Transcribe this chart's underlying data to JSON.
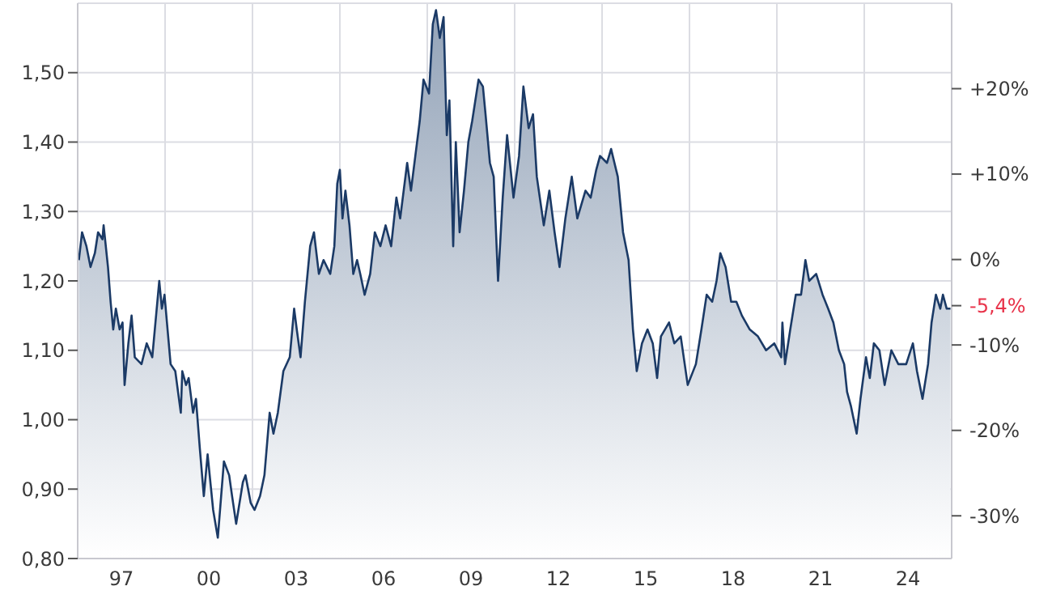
{
  "chart_data": {
    "type": "area",
    "color": "#1b3a66",
    "x": [
      1995.54,
      1995.65,
      1995.8,
      1995.94,
      1996.09,
      1996.2,
      1996.35,
      1996.39,
      1996.54,
      1996.63,
      1996.72,
      1996.81,
      1996.94,
      1997.04,
      1997.11,
      1997.24,
      1997.35,
      1997.46,
      1997.69,
      1997.87,
      1998.06,
      1998.3,
      1998.39,
      1998.48,
      1998.69,
      1998.85,
      1999.04,
      1999.09,
      1999.22,
      1999.31,
      1999.46,
      1999.56,
      1999.69,
      1999.83,
      1999.96,
      2000.15,
      2000.31,
      2000.52,
      2000.7,
      2000.8,
      2000.94,
      2001.17,
      2001.26,
      2001.44,
      2001.57,
      2001.76,
      2001.91,
      2002.09,
      2002.22,
      2002.37,
      2002.56,
      2002.78,
      2002.93,
      2003.02,
      2003.15,
      2003.3,
      2003.48,
      2003.61,
      2003.78,
      2003.94,
      2004.17,
      2004.31,
      2004.41,
      2004.5,
      2004.59,
      2004.69,
      2004.83,
      2004.96,
      2005.09,
      2005.2,
      2005.35,
      2005.54,
      2005.7,
      2005.89,
      2006.07,
      2006.26,
      2006.44,
      2006.57,
      2006.81,
      2006.94,
      2007.09,
      2007.24,
      2007.37,
      2007.56,
      2007.69,
      2007.8,
      2007.93,
      2008.06,
      2008.17,
      2008.26,
      2008.39,
      2008.48,
      2008.61,
      2008.76,
      2008.91,
      2009.04,
      2009.26,
      2009.41,
      2009.5,
      2009.65,
      2009.78,
      2009.93,
      2010.09,
      2010.24,
      2010.46,
      2010.65,
      2010.8,
      2010.98,
      2011.13,
      2011.26,
      2011.5,
      2011.69,
      2011.87,
      2012.04,
      2012.24,
      2012.46,
      2012.65,
      2012.93,
      2013.11,
      2013.3,
      2013.43,
      2013.67,
      2013.81,
      2014.04,
      2014.22,
      2014.41,
      2014.56,
      2014.69,
      2014.87,
      2015.06,
      2015.24,
      2015.39,
      2015.52,
      2015.8,
      2015.98,
      2016.2,
      2016.44,
      2016.72,
      2016.91,
      2017.09,
      2017.28,
      2017.43,
      2017.56,
      2017.74,
      2017.93,
      2018.11,
      2018.3,
      2018.57,
      2018.85,
      2019.13,
      2019.41,
      2019.65,
      2019.69,
      2019.78,
      2019.96,
      2020.15,
      2020.33,
      2020.48,
      2020.61,
      2020.85,
      2021.07,
      2021.26,
      2021.44,
      2021.63,
      2021.81,
      2021.91,
      2022.04,
      2022.24,
      2022.37,
      2022.56,
      2022.69,
      2022.83,
      2023.02,
      2023.2,
      2023.43,
      2023.67,
      2023.94,
      2024.17,
      2024.31,
      2024.5,
      2024.69,
      2024.81,
      2024.96,
      2025.11,
      2025.2,
      2025.33,
      2025.46
    ],
    "values": [
      1.23,
      1.27,
      1.25,
      1.22,
      1.24,
      1.27,
      1.26,
      1.28,
      1.22,
      1.17,
      1.13,
      1.16,
      1.13,
      1.14,
      1.05,
      1.11,
      1.15,
      1.09,
      1.08,
      1.11,
      1.09,
      1.2,
      1.16,
      1.18,
      1.08,
      1.07,
      1.01,
      1.07,
      1.05,
      1.06,
      1.01,
      1.03,
      0.96,
      0.89,
      0.95,
      0.87,
      0.83,
      0.94,
      0.92,
      0.89,
      0.85,
      0.91,
      0.92,
      0.88,
      0.87,
      0.89,
      0.92,
      1.01,
      0.98,
      1.01,
      1.07,
      1.09,
      1.16,
      1.13,
      1.09,
      1.17,
      1.25,
      1.27,
      1.21,
      1.23,
      1.21,
      1.25,
      1.34,
      1.36,
      1.29,
      1.33,
      1.28,
      1.21,
      1.23,
      1.21,
      1.18,
      1.21,
      1.27,
      1.25,
      1.28,
      1.25,
      1.32,
      1.29,
      1.37,
      1.33,
      1.38,
      1.43,
      1.49,
      1.47,
      1.57,
      1.59,
      1.55,
      1.58,
      1.41,
      1.46,
      1.25,
      1.4,
      1.27,
      1.33,
      1.4,
      1.43,
      1.49,
      1.48,
      1.44,
      1.37,
      1.35,
      1.2,
      1.32,
      1.41,
      1.32,
      1.38,
      1.48,
      1.42,
      1.44,
      1.35,
      1.28,
      1.33,
      1.27,
      1.22,
      1.29,
      1.35,
      1.29,
      1.33,
      1.32,
      1.36,
      1.38,
      1.37,
      1.39,
      1.35,
      1.27,
      1.23,
      1.13,
      1.07,
      1.11,
      1.13,
      1.11,
      1.06,
      1.12,
      1.14,
      1.11,
      1.12,
      1.05,
      1.08,
      1.13,
      1.18,
      1.17,
      1.2,
      1.24,
      1.22,
      1.17,
      1.17,
      1.15,
      1.13,
      1.12,
      1.1,
      1.11,
      1.09,
      1.14,
      1.08,
      1.13,
      1.18,
      1.18,
      1.23,
      1.2,
      1.21,
      1.18,
      1.16,
      1.14,
      1.1,
      1.08,
      1.04,
      1.02,
      0.98,
      1.03,
      1.09,
      1.06,
      1.11,
      1.1,
      1.05,
      1.1,
      1.08,
      1.08,
      1.11,
      1.07,
      1.03,
      1.08,
      1.14,
      1.18,
      1.16,
      1.18,
      1.16,
      1.16
    ],
    "xlim": [
      1995.5,
      2025.5
    ],
    "xticks": [
      {
        "value": 1997,
        "label": "97"
      },
      {
        "value": 1998.5,
        "label": null
      },
      {
        "value": 2000,
        "label": "00"
      },
      {
        "value": 2001.5,
        "label": null
      },
      {
        "value": 2003,
        "label": "03"
      },
      {
        "value": 2004.5,
        "label": null
      },
      {
        "value": 2006,
        "label": "06"
      },
      {
        "value": 2007.5,
        "label": null
      },
      {
        "value": 2009,
        "label": "09"
      },
      {
        "value": 2010.5,
        "label": null
      },
      {
        "value": 2012,
        "label": "12"
      },
      {
        "value": 2013.5,
        "label": null
      },
      {
        "value": 2015,
        "label": "15"
      },
      {
        "value": 2016.5,
        "label": null
      },
      {
        "value": 2018,
        "label": "18"
      },
      {
        "value": 2019.5,
        "label": null
      },
      {
        "value": 2021,
        "label": "21"
      },
      {
        "value": 2022.5,
        "label": null
      },
      {
        "value": 2024,
        "label": "24"
      }
    ],
    "ylim": [
      0.8,
      1.6
    ],
    "yticks": [
      {
        "value": 0.8,
        "label": "0,80"
      },
      {
        "value": 0.9,
        "label": "0,90"
      },
      {
        "value": 1.0,
        "label": "1,00"
      },
      {
        "value": 1.1,
        "label": "1,10"
      },
      {
        "value": 1.2,
        "label": "1,20"
      },
      {
        "value": 1.3,
        "label": "1,30"
      },
      {
        "value": 1.4,
        "label": "1,40"
      },
      {
        "value": 1.5,
        "label": "1,50"
      }
    ],
    "y2lim": [
      -35,
      30
    ],
    "y2ticks": [
      {
        "value": -30,
        "label": "-30%"
      },
      {
        "value": -20,
        "label": "-20%"
      },
      {
        "value": -10,
        "label": "-10%"
      },
      {
        "value": -5.4,
        "label": "-5,4%"
      },
      {
        "value": 0,
        "label": "0%"
      },
      {
        "value": 10,
        "label": "+10%"
      },
      {
        "value": 20,
        "label": "+20%"
      }
    ],
    "grid": true
  }
}
